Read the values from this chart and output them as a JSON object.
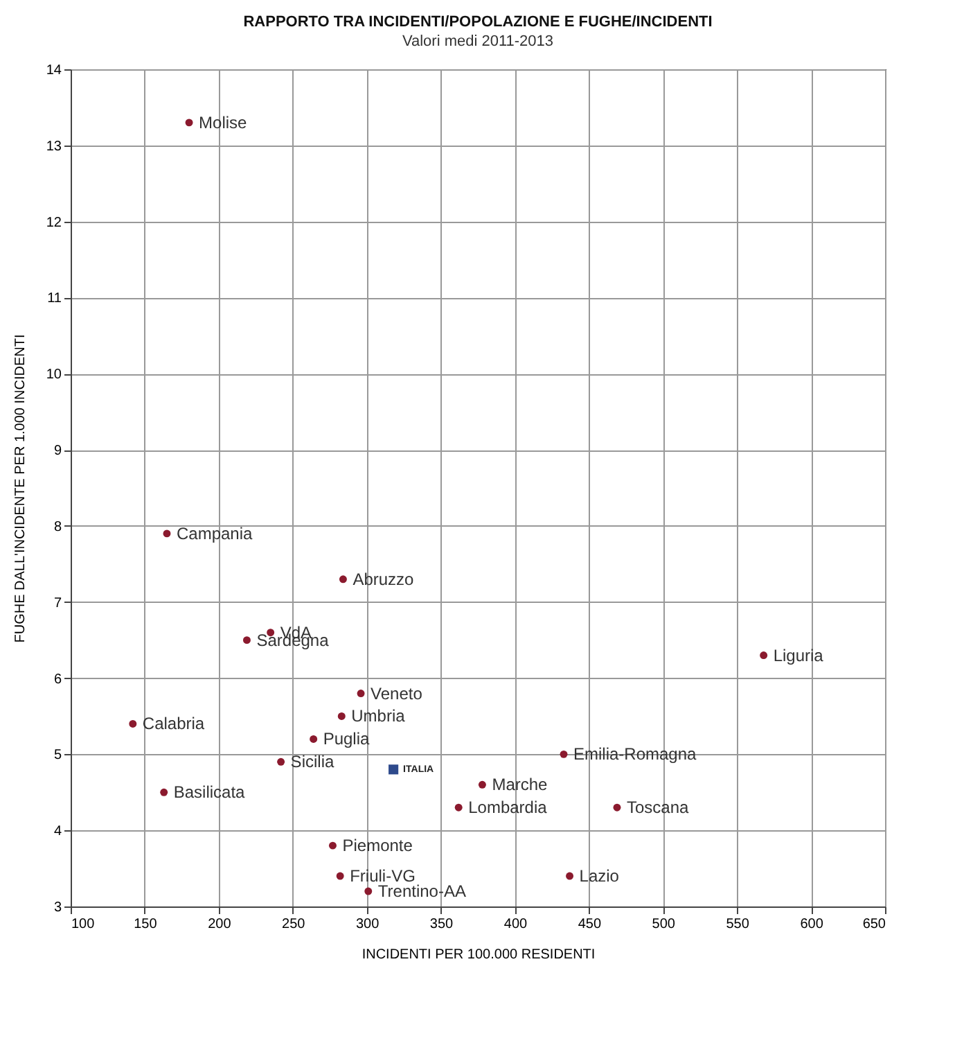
{
  "chart_data": {
    "type": "scatter",
    "title": "RAPPORTO TRA INCIDENTI/POPOLAZIONE E FUGHE/INCIDENTI",
    "subtitle": "Valori medi 2011-2013",
    "xlabel": "INCIDENTI PER 100.000 RESIDENTI",
    "ylabel": "FUGHE DALL'INCIDENTE PER 1.000 INCIDENTI",
    "xlim": [
      100,
      650
    ],
    "xticks": [
      100,
      150,
      200,
      250,
      300,
      350,
      400,
      450,
      500,
      550,
      600,
      650
    ],
    "ylim": [
      3,
      14
    ],
    "yticks": [
      3,
      4,
      5,
      6,
      7,
      8,
      9,
      10,
      11,
      12,
      13,
      14
    ],
    "grid": true,
    "marker": "circle",
    "series": [
      {
        "color": "#8b1a2e",
        "x": [
          180,
          165,
          284,
          235,
          219,
          568,
          296,
          283,
          142,
          264,
          433,
          242,
          163,
          378,
          362,
          469,
          277,
          437,
          282,
          301
        ],
        "values": [
          13.3,
          7.9,
          7.3,
          6.6,
          6.5,
          6.3,
          5.8,
          5.5,
          5.4,
          5.2,
          5.0,
          4.9,
          4.5,
          4.6,
          4.3,
          4.3,
          3.8,
          3.4,
          3.4,
          3.2
        ]
      },
      {
        "name": "ITALIA",
        "color": "#2e4a8c",
        "marker": "square",
        "x": [
          318
        ],
        "values": [
          4.8
        ]
      }
    ],
    "annotations": [
      {
        "text": "Molise",
        "x": 180,
        "y": 13.3
      },
      {
        "text": "Campania",
        "x": 165,
        "y": 7.9
      },
      {
        "text": "Abruzzo",
        "x": 284,
        "y": 7.3
      },
      {
        "text": "VdA",
        "x": 235,
        "y": 6.6
      },
      {
        "text": "Sardegna",
        "x": 219,
        "y": 6.5
      },
      {
        "text": "Liguria",
        "x": 568,
        "y": 6.3
      },
      {
        "text": "Veneto",
        "x": 296,
        "y": 5.8
      },
      {
        "text": "Umbria",
        "x": 283,
        "y": 5.5
      },
      {
        "text": "Calabria",
        "x": 142,
        "y": 5.4
      },
      {
        "text": "Puglia",
        "x": 264,
        "y": 5.2
      },
      {
        "text": "Emilia-Romagna",
        "x": 433,
        "y": 5.0
      },
      {
        "text": "Sicilia",
        "x": 242,
        "y": 4.9
      },
      {
        "text": "Basilicata",
        "x": 163,
        "y": 4.5
      },
      {
        "text": "Marche",
        "x": 378,
        "y": 4.6
      },
      {
        "text": "Lombardia",
        "x": 362,
        "y": 4.3
      },
      {
        "text": "Toscana",
        "x": 469,
        "y": 4.3
      },
      {
        "text": "Piemonte",
        "x": 277,
        "y": 3.8
      },
      {
        "text": "Lazio",
        "x": 437,
        "y": 3.4
      },
      {
        "text": "Friuli-VG",
        "x": 282,
        "y": 3.4
      },
      {
        "text": "Trentino-AA",
        "x": 301,
        "y": 3.2
      }
    ]
  }
}
